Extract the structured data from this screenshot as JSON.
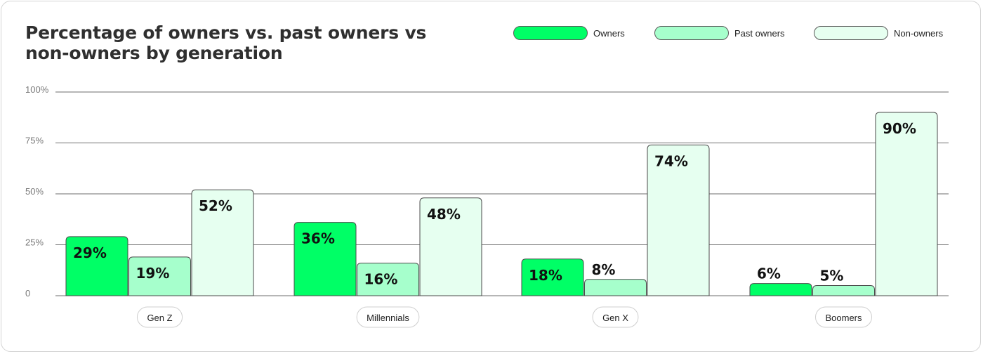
{
  "chart_data": {
    "type": "bar",
    "title": "Percentage of owners vs. past owners vs non-owners by generation",
    "categories": [
      "Gen Z",
      "Millennials",
      "Gen X",
      "Boomers"
    ],
    "series": [
      {
        "name": "Owners",
        "values": [
          29,
          36,
          18,
          6
        ],
        "labels": [
          "29%",
          "36%",
          "18%",
          "6%"
        ],
        "color": "#00ff66"
      },
      {
        "name": "Past owners",
        "values": [
          19,
          16,
          8,
          5
        ],
        "labels": [
          "19%",
          "16%",
          "8%",
          "5%"
        ],
        "color": "#a6ffcc"
      },
      {
        "name": "Non-owners",
        "values": [
          52,
          48,
          74,
          90
        ],
        "labels": [
          "52%",
          "48%",
          "74%",
          "90%"
        ],
        "color": "#e6fff0"
      }
    ],
    "yticks": [
      "0",
      "25%",
      "50%",
      "75%",
      "100%"
    ],
    "ylim": [
      0,
      100
    ],
    "grid": true,
    "legend_position": "top-right"
  }
}
